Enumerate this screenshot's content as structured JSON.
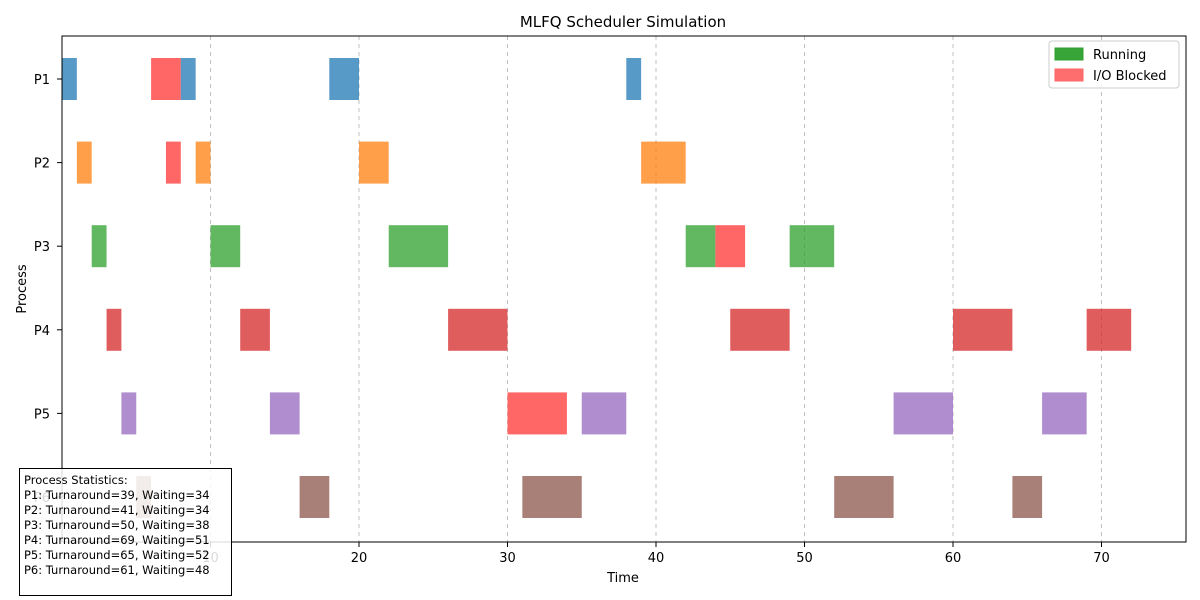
{
  "chart_data": {
    "type": "gantt",
    "title": "MLFQ Scheduler Simulation",
    "xlabel": "Time",
    "ylabel": "Process",
    "xlim": [
      0,
      76
    ],
    "xticks": [
      10,
      20,
      30,
      40,
      50,
      60,
      70
    ],
    "grid": "vertical dashed",
    "processes": [
      {
        "name": "P1",
        "color": "#1f77b4",
        "bars": [
          {
            "start": 0,
            "end": 1,
            "state": "running"
          },
          {
            "start": 6,
            "end": 8,
            "state": "io"
          },
          {
            "start": 8,
            "end": 9,
            "state": "running"
          },
          {
            "start": 18,
            "end": 20,
            "state": "running"
          },
          {
            "start": 38,
            "end": 39,
            "state": "running"
          }
        ]
      },
      {
        "name": "P2",
        "color": "#ff7f0e",
        "bars": [
          {
            "start": 1,
            "end": 2,
            "state": "running"
          },
          {
            "start": 7,
            "end": 8,
            "state": "io"
          },
          {
            "start": 9,
            "end": 10,
            "state": "running"
          },
          {
            "start": 20,
            "end": 22,
            "state": "running"
          },
          {
            "start": 39,
            "end": 42,
            "state": "running"
          }
        ]
      },
      {
        "name": "P3",
        "color": "#2ca02c",
        "bars": [
          {
            "start": 2,
            "end": 3,
            "state": "running"
          },
          {
            "start": 10,
            "end": 12,
            "state": "running"
          },
          {
            "start": 22,
            "end": 26,
            "state": "running"
          },
          {
            "start": 42,
            "end": 44,
            "state": "running"
          },
          {
            "start": 44,
            "end": 46,
            "state": "io"
          },
          {
            "start": 49,
            "end": 52,
            "state": "running"
          }
        ]
      },
      {
        "name": "P4",
        "color": "#d62728",
        "bars": [
          {
            "start": 3,
            "end": 4,
            "state": "running"
          },
          {
            "start": 12,
            "end": 14,
            "state": "running"
          },
          {
            "start": 26,
            "end": 30,
            "state": "running"
          },
          {
            "start": 45,
            "end": 49,
            "state": "running"
          },
          {
            "start": 60,
            "end": 64,
            "state": "running"
          },
          {
            "start": 69,
            "end": 72,
            "state": "running"
          }
        ]
      },
      {
        "name": "P5",
        "color": "#9467bd",
        "bars": [
          {
            "start": 4,
            "end": 5,
            "state": "running"
          },
          {
            "start": 14,
            "end": 16,
            "state": "running"
          },
          {
            "start": 30,
            "end": 34,
            "state": "io"
          },
          {
            "start": 35,
            "end": 38,
            "state": "running"
          },
          {
            "start": 56,
            "end": 60,
            "state": "running"
          },
          {
            "start": 66,
            "end": 69,
            "state": "running"
          }
        ]
      },
      {
        "name": "P6",
        "color": "#8c564b",
        "bars": [
          {
            "start": 5,
            "end": 6,
            "state": "running"
          },
          {
            "start": 16,
            "end": 18,
            "state": "running"
          },
          {
            "start": 31,
            "end": 35,
            "state": "running"
          },
          {
            "start": 52,
            "end": 56,
            "state": "running"
          },
          {
            "start": 64,
            "end": 66,
            "state": "running"
          }
        ]
      }
    ],
    "legend": {
      "placement": "top-right",
      "items": [
        {
          "label": "Running",
          "color": "#2ca02c"
        },
        {
          "label": "I/O Blocked",
          "color": "#ff6666"
        }
      ]
    },
    "io_color": "#ff6666"
  },
  "stats": {
    "title": "Process Statistics:",
    "lines": [
      "P1: Turnaround=39, Waiting=34",
      "P2: Turnaround=41, Waiting=34",
      "P3: Turnaround=50, Waiting=38",
      "P4: Turnaround=69, Waiting=51",
      "P5: Turnaround=65, Waiting=52",
      "P6: Turnaround=61, Waiting=48"
    ]
  }
}
